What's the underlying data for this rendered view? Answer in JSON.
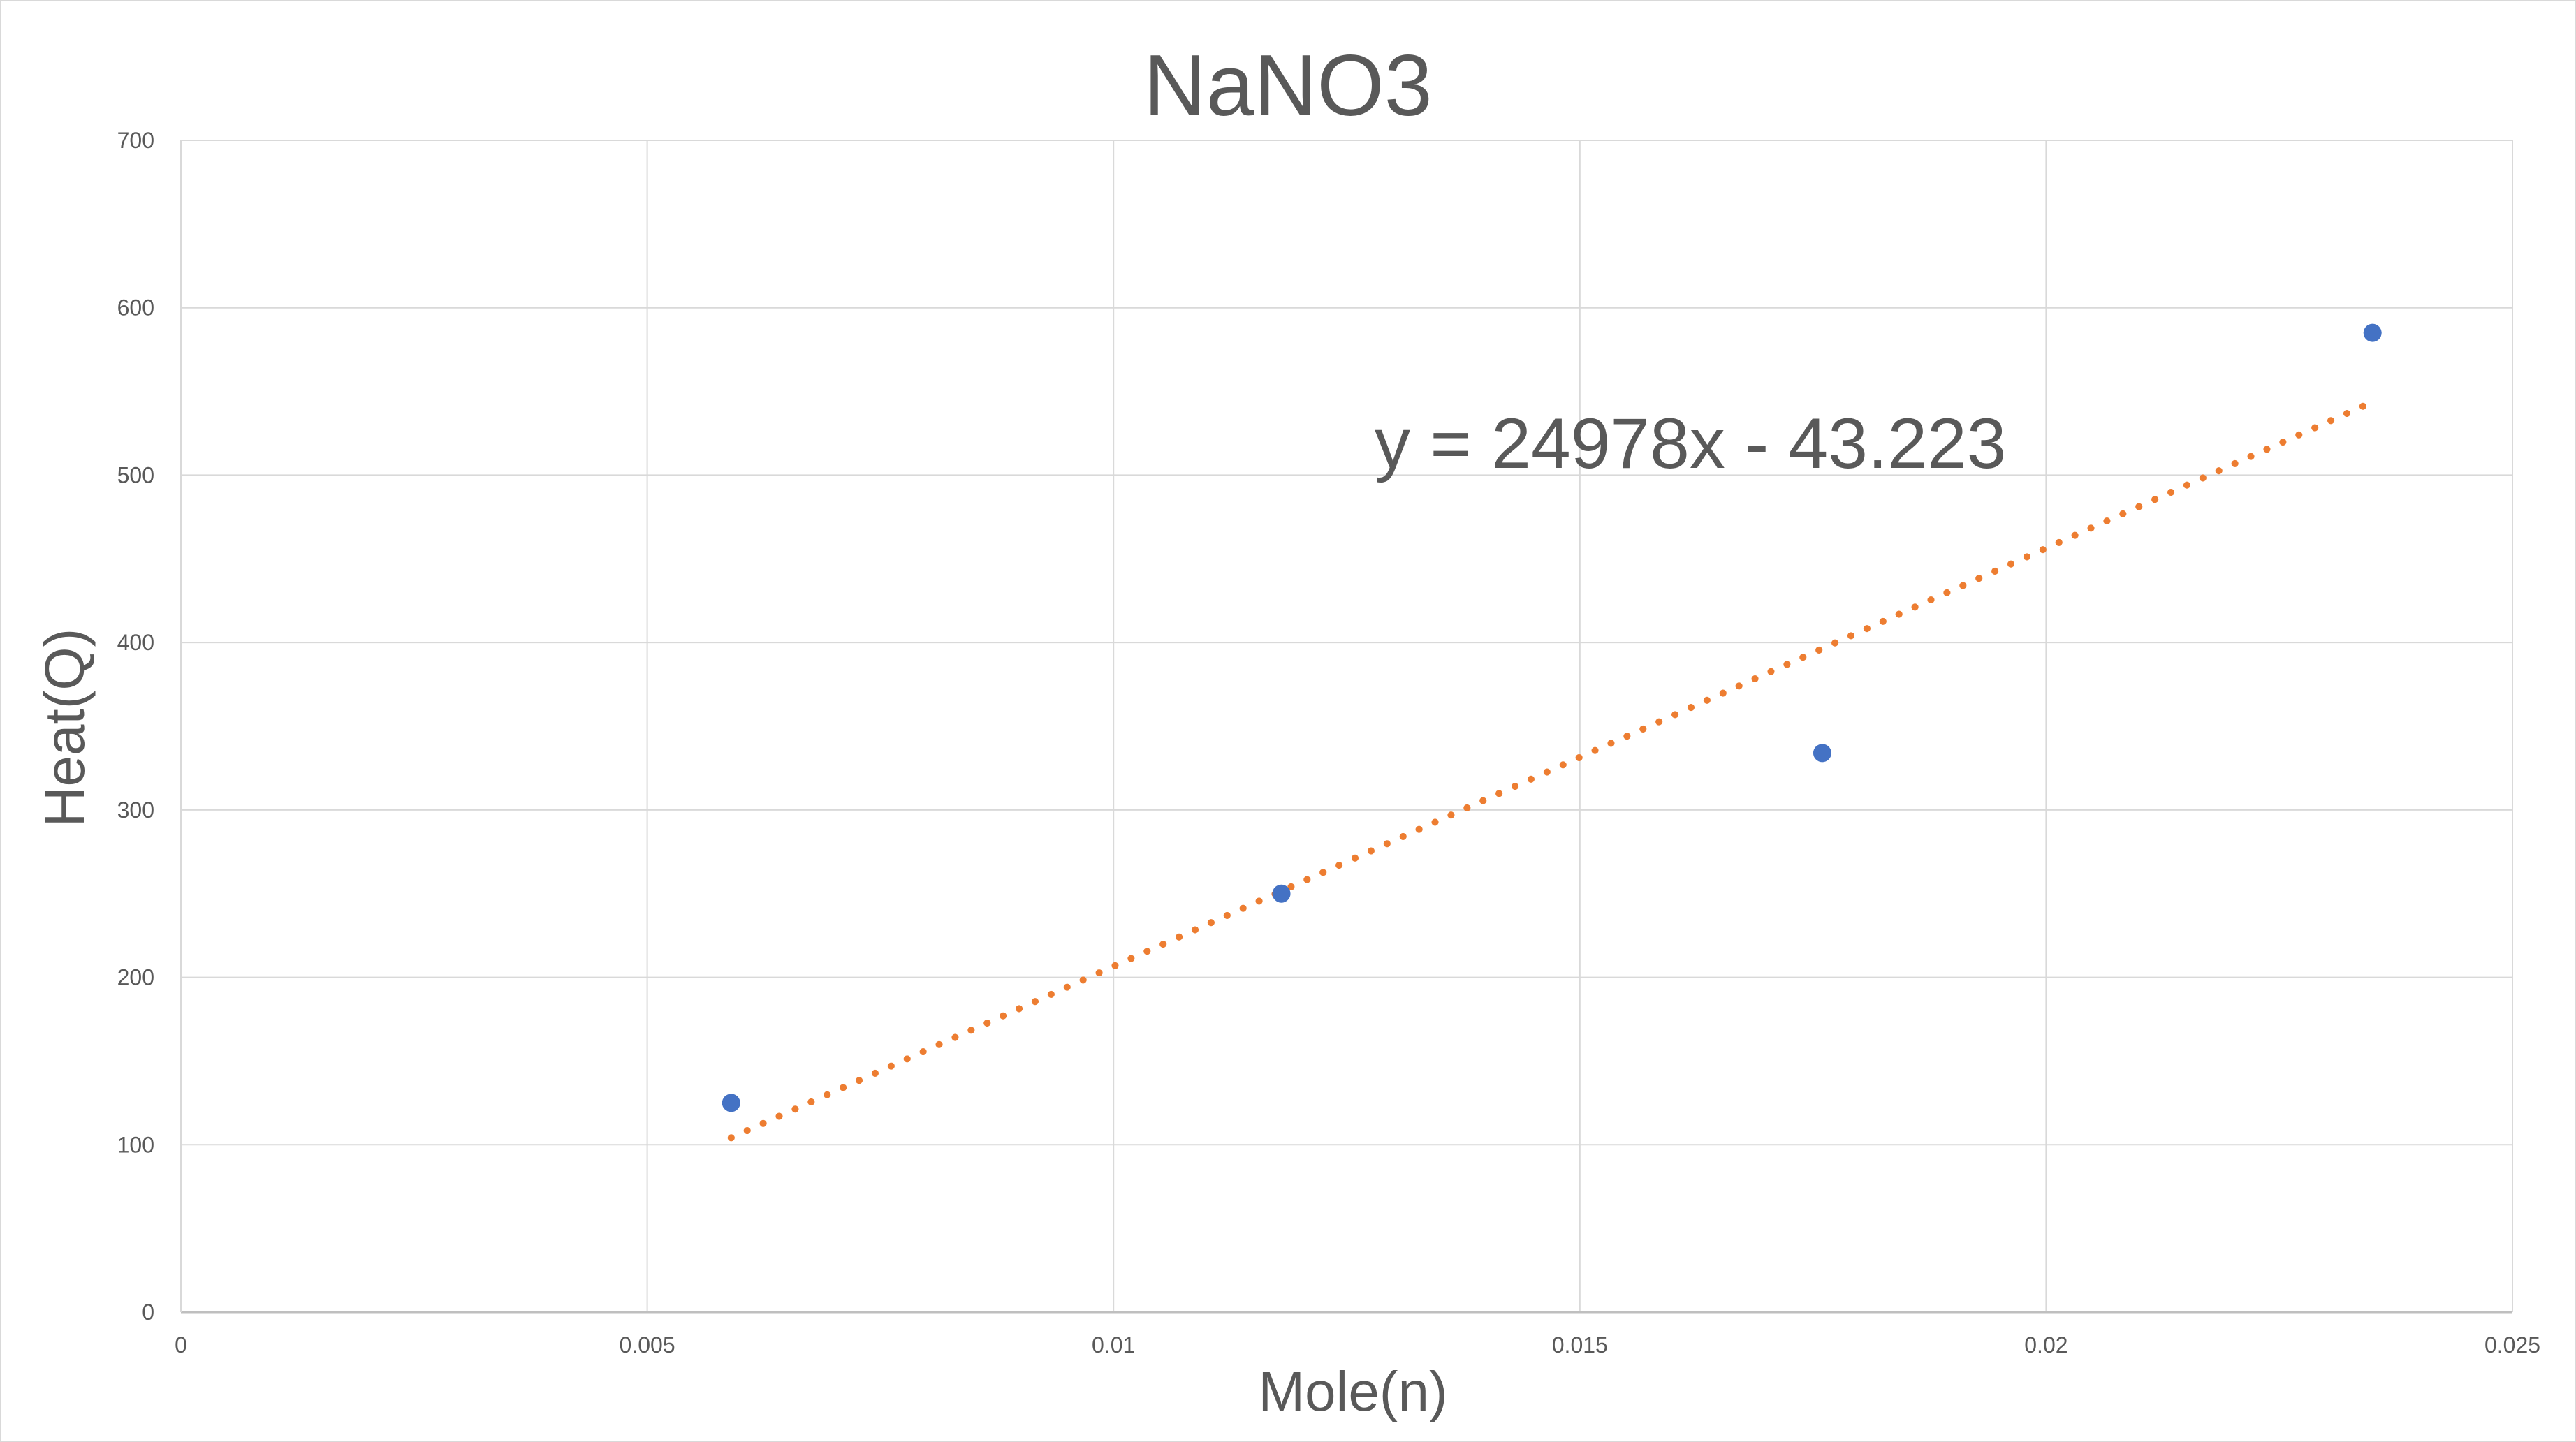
{
  "chart_data": {
    "type": "scatter",
    "title": "NaNO3",
    "xlabel": "Mole(n)",
    "ylabel": "Heat(Q)",
    "xlim": [
      0,
      0.025
    ],
    "ylim": [
      0,
      700
    ],
    "x_ticks": [
      0,
      0.005,
      0.01,
      0.015,
      0.02,
      0.025
    ],
    "x_tick_labels": [
      "0",
      "0.005",
      "0.01",
      "0.015",
      "0.02",
      "0.025"
    ],
    "y_ticks": [
      0,
      100,
      200,
      300,
      400,
      500,
      600,
      700
    ],
    "y_tick_labels": [
      "0",
      "100",
      "200",
      "300",
      "400",
      "500",
      "600",
      "700"
    ],
    "grid": true,
    "legend": "none",
    "series": [
      {
        "x": [
          0.0059,
          0.0118,
          0.0176,
          0.0235
        ],
        "y": [
          125,
          250,
          334,
          585
        ],
        "color": "#4472C4"
      }
    ],
    "trendline": {
      "type": "linear",
      "slope": 24978,
      "intercept": -43.223,
      "x_range": [
        0.0059,
        0.0235
      ],
      "color": "#ED7D31",
      "style": "dotted",
      "equation_label": "y = 24978x - 43.223"
    }
  }
}
